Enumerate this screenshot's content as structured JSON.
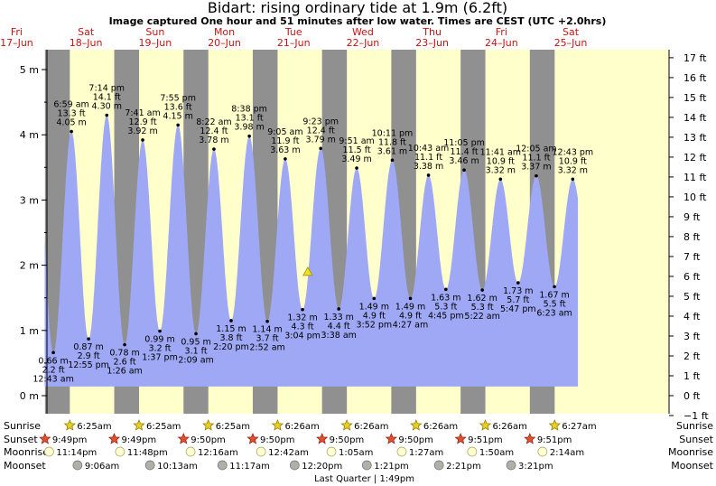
{
  "title": "Bidart: rising  ordinary tide at 1.9m (6.2ft)",
  "subtitle": "Image captured One hour and 51 minutes after low water. Times are CEST (UTC +2.0hrs)",
  "colors": {
    "day": "#ffffcc",
    "night": "#909090",
    "tide": "#9ea8f5",
    "dayLabel": "#cc1111"
  },
  "days": [
    {
      "name": "Fri",
      "date": "17–Jun"
    },
    {
      "name": "Sat",
      "date": "18–Jun"
    },
    {
      "name": "Sun",
      "date": "19–Jun"
    },
    {
      "name": "Mon",
      "date": "20–Jun"
    },
    {
      "name": "Tue",
      "date": "21–Jun"
    },
    {
      "name": "Wed",
      "date": "22–Jun"
    },
    {
      "name": "Thu",
      "date": "23–Jun"
    },
    {
      "name": "Fri",
      "date": "24–Jun"
    },
    {
      "name": "Sat",
      "date": "25–Jun"
    }
  ],
  "chart_data": {
    "type": "area",
    "title": "Bidart: rising  ordinary tide at 1.9m (6.2ft)",
    "y_left_unit": "m",
    "y_left_ticks": [
      "0 m",
      "1 m",
      "2 m",
      "3 m",
      "4 m",
      "5 m"
    ],
    "y_right_ticks": [
      "−1 ft",
      "0 ft",
      "1 ft",
      "2 ft",
      "3 ft",
      "4 ft",
      "5 ft",
      "6 ft",
      "7 ft",
      "8 ft",
      "9 ft",
      "10 ft",
      "11 ft",
      "12 ft",
      "13 ft",
      "14 ft",
      "15 ft",
      "16 ft",
      "17 ft"
    ],
    "ylim_m": [
      -0.2,
      5.3
    ],
    "current": {
      "time": "Tue 21-Jun 16:55",
      "height_m": 1.9,
      "height_ft": 6.2,
      "marker": "triangle"
    },
    "tides": [
      {
        "time": "12:43 am",
        "m": "0.66 m",
        "ft": "2.2 ft",
        "type": "low",
        "value": 0.66,
        "hours": 24.72
      },
      {
        "time": "6:59 am",
        "m": "4.05 m",
        "ft": "13.3 ft",
        "type": "high",
        "value": 4.05,
        "hours": 30.98
      },
      {
        "time": "12:55 pm",
        "m": "0.87 m",
        "ft": "2.9 ft",
        "type": "low",
        "value": 0.87,
        "hours": 36.92
      },
      {
        "time": "7:14 pm",
        "m": "4.30 m",
        "ft": "14.1 ft",
        "type": "high",
        "value": 4.3,
        "hours": 43.23
      },
      {
        "time": "1:26 am",
        "m": "0.78 m",
        "ft": "2.6 ft",
        "type": "low",
        "value": 0.78,
        "hours": 49.43
      },
      {
        "time": "7:41 am",
        "m": "3.92 m",
        "ft": "12.9 ft",
        "type": "high",
        "value": 3.92,
        "hours": 55.68
      },
      {
        "time": "1:37 pm",
        "m": "0.99 m",
        "ft": "3.2 ft",
        "type": "low",
        "value": 0.99,
        "hours": 61.62
      },
      {
        "time": "7:55 pm",
        "m": "4.15 m",
        "ft": "13.6 ft",
        "type": "high",
        "value": 4.15,
        "hours": 67.92
      },
      {
        "time": "2:09 am",
        "m": "0.95 m",
        "ft": "3.1 ft",
        "type": "low",
        "value": 0.95,
        "hours": 74.15
      },
      {
        "time": "8:22 am",
        "m": "3.78 m",
        "ft": "12.4 ft",
        "type": "high",
        "value": 3.78,
        "hours": 80.37
      },
      {
        "time": "2:20 pm",
        "m": "1.15 m",
        "ft": "3.8 ft",
        "type": "low",
        "value": 1.15,
        "hours": 86.33
      },
      {
        "time": "8:38 pm",
        "m": "3.98 m",
        "ft": "13.1 ft",
        "type": "high",
        "value": 3.98,
        "hours": 92.63
      },
      {
        "time": "2:52 am",
        "m": "1.14 m",
        "ft": "3.7 ft",
        "type": "low",
        "value": 1.14,
        "hours": 98.87
      },
      {
        "time": "9:05 am",
        "m": "3.63 m",
        "ft": "11.9 ft",
        "type": "high",
        "value": 3.63,
        "hours": 105.08
      },
      {
        "time": "3:04 pm",
        "m": "1.32 m",
        "ft": "4.3 ft",
        "type": "low",
        "value": 1.32,
        "hours": 111.07
      },
      {
        "time": "9:23 pm",
        "m": "3.79 m",
        "ft": "12.4 ft",
        "type": "high",
        "value": 3.79,
        "hours": 117.38
      },
      {
        "time": "3:38 am",
        "m": "1.33 m",
        "ft": "4.4 ft",
        "type": "low",
        "value": 1.33,
        "hours": 123.63
      },
      {
        "time": "9:51 am",
        "m": "3.49 m",
        "ft": "11.5 ft",
        "type": "high",
        "value": 3.49,
        "hours": 129.85
      },
      {
        "time": "3:52 pm",
        "m": "1.49 m",
        "ft": "4.9 ft",
        "type": "low",
        "value": 1.49,
        "hours": 135.87
      },
      {
        "time": "10:11 pm",
        "m": "3.61 m",
        "ft": "11.8 ft",
        "type": "high",
        "value": 3.61,
        "hours": 142.18
      },
      {
        "time": "4:27 am",
        "m": "1.49 m",
        "ft": "4.9 ft",
        "type": "low",
        "value": 1.49,
        "hours": 148.45
      },
      {
        "time": "10:43 am",
        "m": "3.38 m",
        "ft": "11.1 ft",
        "type": "high",
        "value": 3.38,
        "hours": 154.72
      },
      {
        "time": "4:45 pm",
        "m": "1.63 m",
        "ft": "5.3 ft",
        "type": "low",
        "value": 1.63,
        "hours": 160.75
      },
      {
        "time": "11:05 pm",
        "m": "3.46 m",
        "ft": "11.4 ft",
        "type": "high",
        "value": 3.46,
        "hours": 167.08
      },
      {
        "time": "5:22 am",
        "m": "1.62 m",
        "ft": "5.3 ft",
        "type": "low",
        "value": 1.62,
        "hours": 173.37
      },
      {
        "time": "11:41 am",
        "m": "3.32 m",
        "ft": "10.9 ft",
        "type": "high",
        "value": 3.32,
        "hours": 179.68
      },
      {
        "time": "5:47 pm",
        "m": "1.73 m",
        "ft": "5.7 ft",
        "type": "low",
        "value": 1.73,
        "hours": 185.78
      },
      {
        "time": "12:05 am",
        "m": "3.37 m",
        "ft": "11.1 ft",
        "type": "high",
        "value": 3.37,
        "hours": 192.08
      },
      {
        "time": "6:23 am",
        "m": "1.67 m",
        "ft": "5.5 ft",
        "type": "low",
        "value": 1.67,
        "hours": 198.38
      },
      {
        "time": "12:43 pm",
        "m": "3.32 m",
        "ft": "10.9 ft",
        "type": "high",
        "value": 3.32,
        "hours": 204.72
      }
    ],
    "nights": [
      {
        "sunset": 21.82,
        "sunrise": 30.42
      },
      {
        "sunset": 45.82,
        "sunrise": 54.42
      },
      {
        "sunset": 69.83,
        "sunrise": 78.42
      },
      {
        "sunset": 93.83,
        "sunrise": 102.43
      },
      {
        "sunset": 117.83,
        "sunrise": 126.43
      },
      {
        "sunset": 141.83,
        "sunrise": 150.43
      },
      {
        "sunset": 165.85,
        "sunrise": 174.43
      },
      {
        "sunset": 189.85,
        "sunrise": 198.45
      }
    ],
    "astro": {
      "row_labels": [
        "Sunrise",
        "Sunset",
        "Moonrise",
        "Moonset"
      ],
      "sunrise": [
        {
          "t": "6:25am",
          "h": 30.42
        },
        {
          "t": "6:25am",
          "h": 54.42
        },
        {
          "t": "6:25am",
          "h": 78.42
        },
        {
          "t": "6:26am",
          "h": 102.43
        },
        {
          "t": "6:26am",
          "h": 126.43
        },
        {
          "t": "6:26am",
          "h": 150.43
        },
        {
          "t": "6:26am",
          "h": 174.43
        },
        {
          "t": "6:27am",
          "h": 198.45
        }
      ],
      "sunset": [
        {
          "t": "9:49pm",
          "h": 21.82
        },
        {
          "t": "9:49pm",
          "h": 45.82
        },
        {
          "t": "9:50pm",
          "h": 69.83
        },
        {
          "t": "9:50pm",
          "h": 93.83
        },
        {
          "t": "9:50pm",
          "h": 117.83
        },
        {
          "t": "9:50pm",
          "h": 141.83
        },
        {
          "t": "9:51pm",
          "h": 165.85
        },
        {
          "t": "9:51pm",
          "h": 189.85
        }
      ],
      "moonrise": [
        {
          "t": "11:14pm",
          "h": 23.23
        },
        {
          "t": "11:48pm",
          "h": 47.8
        },
        {
          "t": "12:16am",
          "h": 72.27
        },
        {
          "t": "12:42am",
          "h": 96.7
        },
        {
          "t": "1:05am",
          "h": 121.08
        },
        {
          "t": "1:27am",
          "h": 145.45
        },
        {
          "t": "1:50am",
          "h": 169.83
        },
        {
          "t": "2:14am",
          "h": 194.23
        }
      ],
      "moonset": [
        {
          "t": "9:06am",
          "h": 33.1
        },
        {
          "t": "10:13am",
          "h": 58.22
        },
        {
          "t": "11:17am",
          "h": 83.28
        },
        {
          "t": "12:20pm",
          "h": 108.33
        },
        {
          "t": "1:21pm",
          "h": 133.35
        },
        {
          "t": "2:21pm",
          "h": 158.35
        },
        {
          "t": "3:21pm",
          "h": 183.35
        }
      ],
      "moon_phase": "Last Quarter | 1:49pm"
    }
  }
}
